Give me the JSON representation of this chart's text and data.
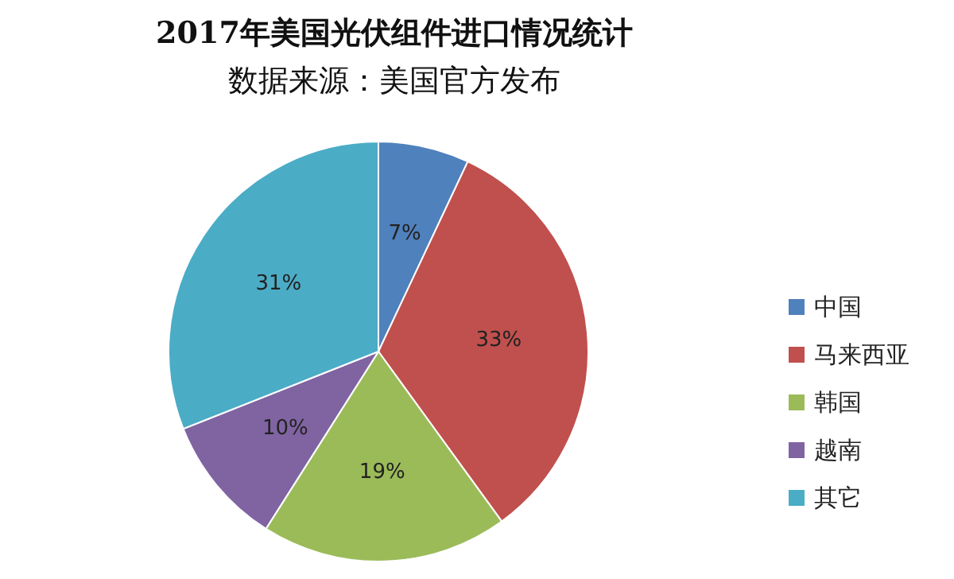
{
  "chart_data": {
    "type": "pie",
    "title": "2017年美国光伏组件进口情况统计",
    "subtitle": "数据来源：美国官方发布",
    "categories": [
      "中国",
      "马来西亚",
      "韩国",
      "越南",
      "其它"
    ],
    "values": [
      7,
      33,
      19,
      10,
      31
    ],
    "value_labels": [
      "7%",
      "33%",
      "19%",
      "10%",
      "31%"
    ],
    "colors": [
      "#4f81bd",
      "#c0504d",
      "#9bbb59",
      "#8064a2",
      "#4bacc6"
    ],
    "legend": "right"
  }
}
